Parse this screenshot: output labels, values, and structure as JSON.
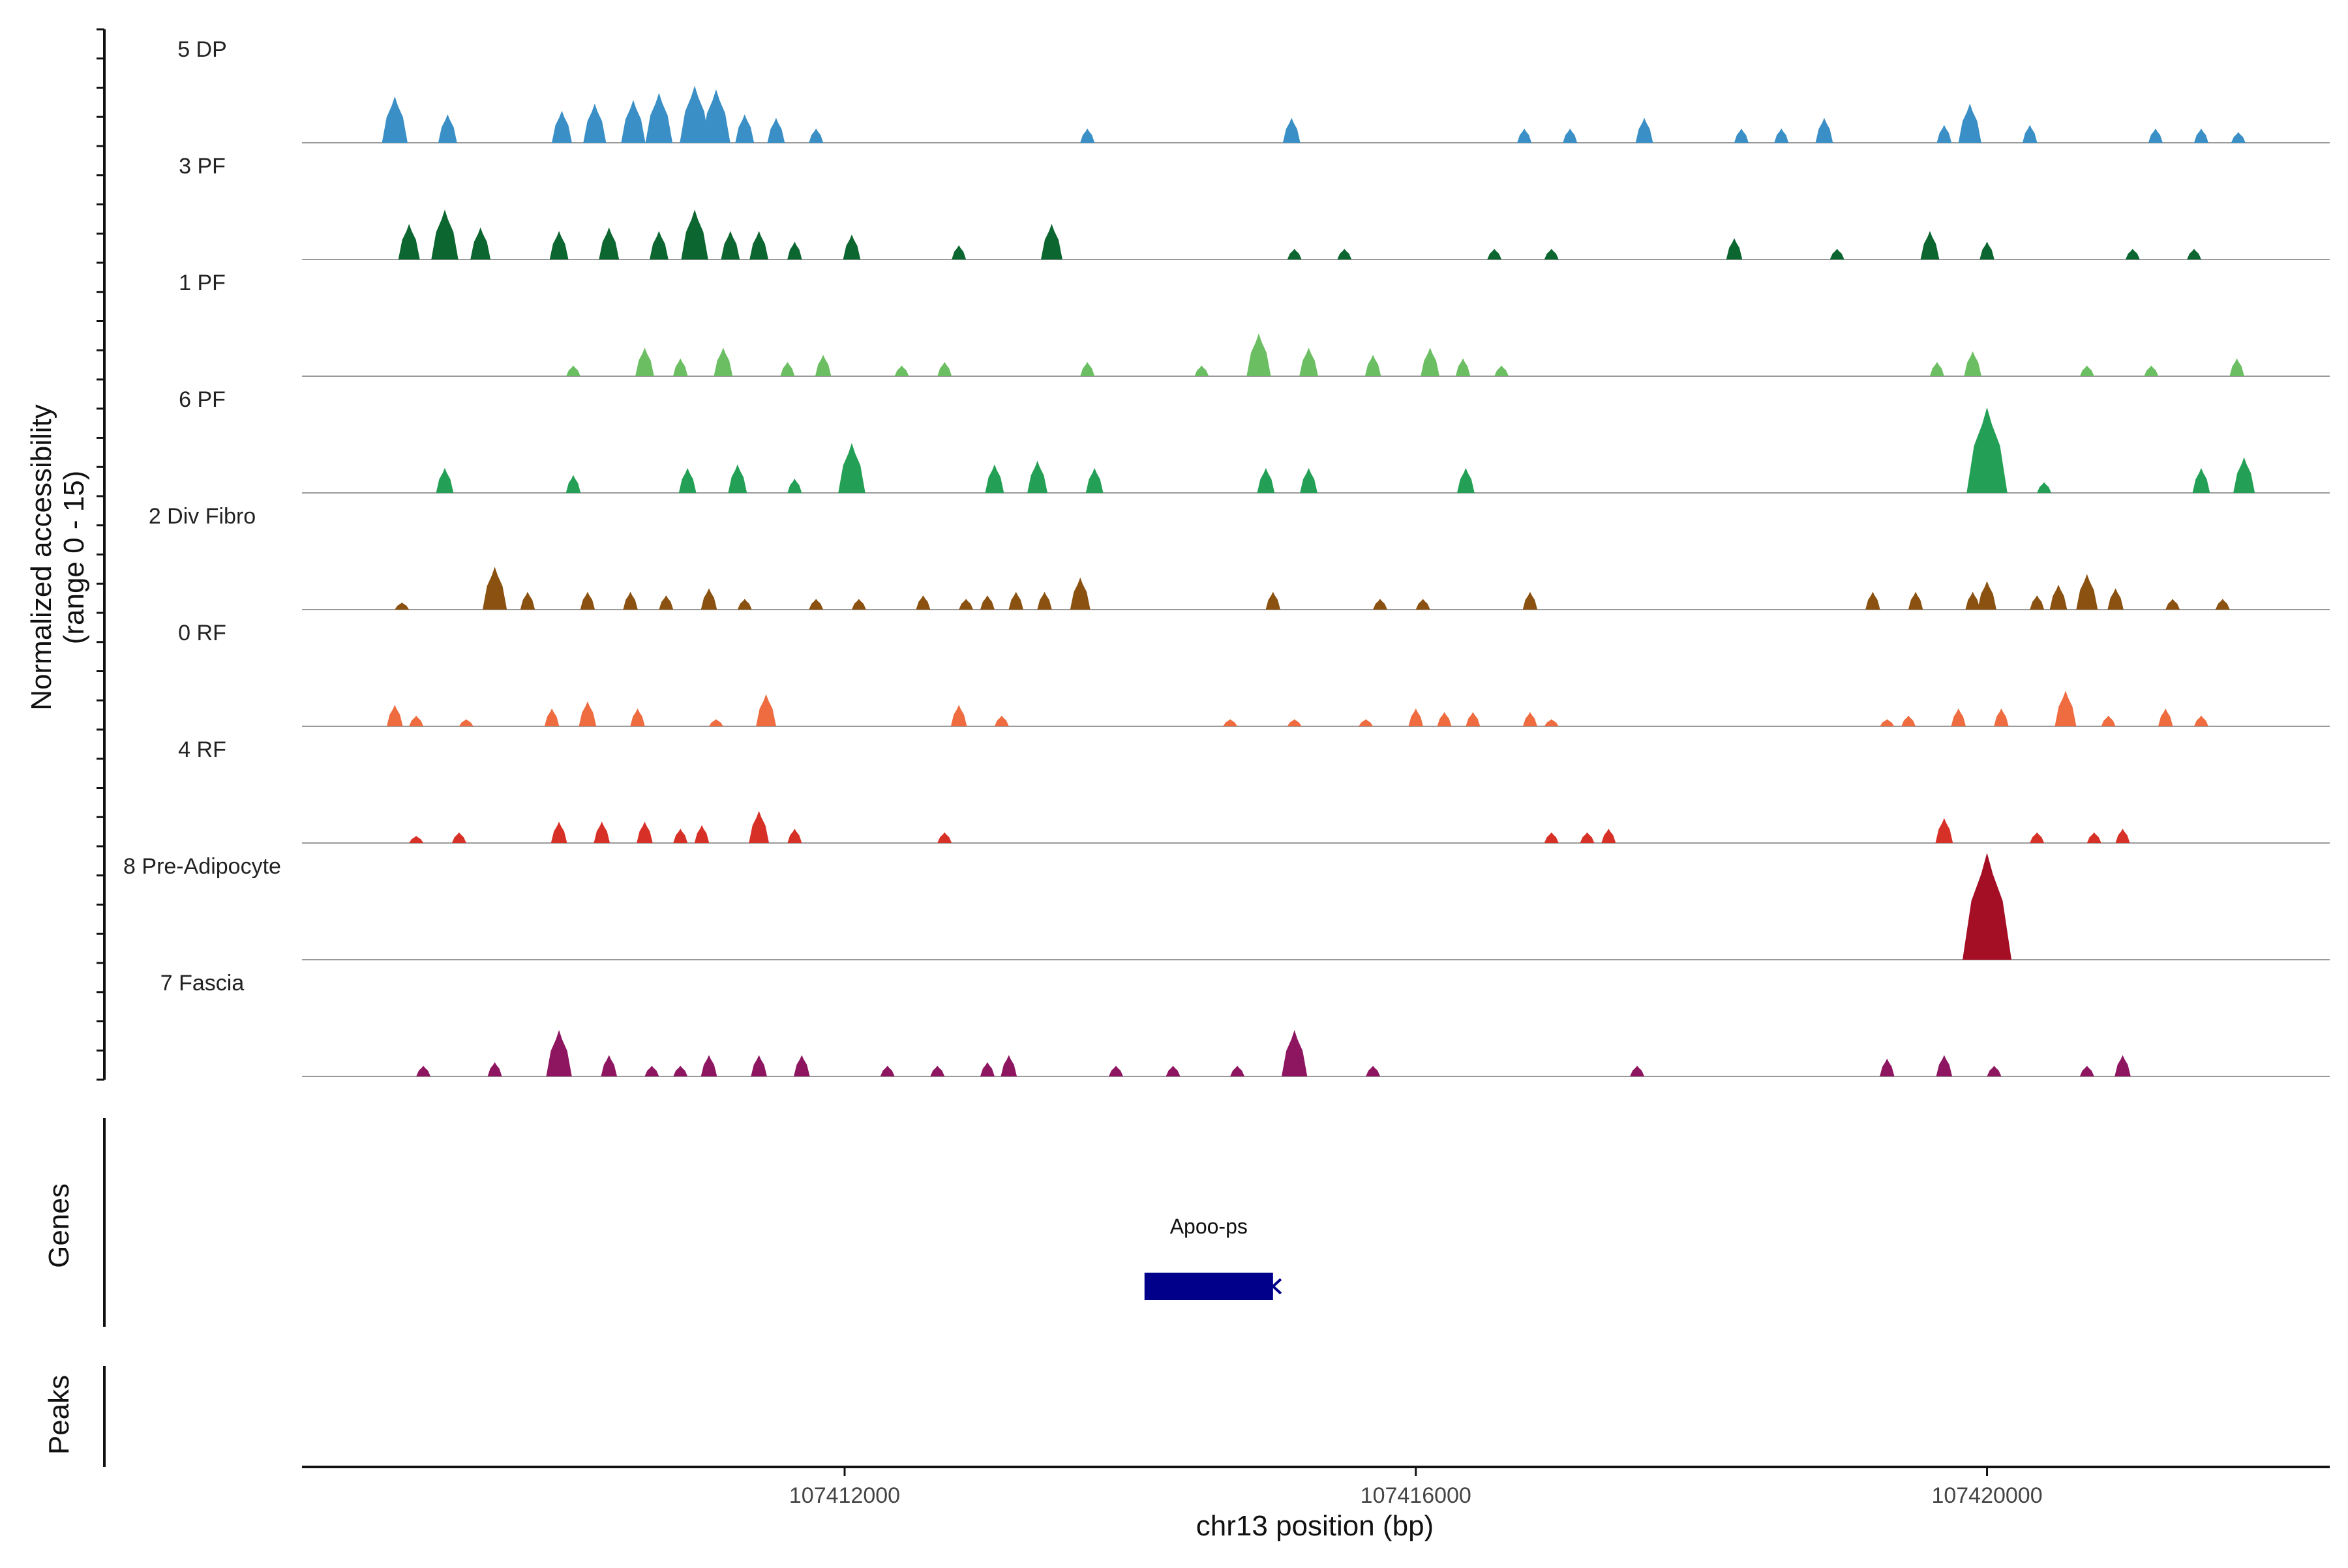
{
  "chart_data": {
    "type": "area",
    "ylabel_line1": "Normalized accessibility",
    "ylabel_line2": "(range 0 - 15)",
    "ylim": [
      0,
      15
    ],
    "xlabel": "chr13 position (bp)",
    "xlim": [
      107408200,
      107422400
    ],
    "xticks": [
      107412000,
      107416000,
      107420000
    ],
    "xtick_labels": [
      "107412000",
      "107416000",
      "107420000"
    ],
    "grid": false,
    "series": [
      {
        "name": "5 DP",
        "color": "#3A8FC6",
        "peaks": [
          [
            107408850,
            6.5
          ],
          [
            107409220,
            4
          ],
          [
            107410020,
            4.5
          ],
          [
            107410250,
            5.5
          ],
          [
            107410520,
            6
          ],
          [
            107410700,
            7
          ],
          [
            107410950,
            8
          ],
          [
            107411100,
            7.5
          ],
          [
            107411300,
            4
          ],
          [
            107411520,
            3.5
          ],
          [
            107411800,
            2
          ],
          [
            107413700,
            2
          ],
          [
            107415130,
            3.5
          ],
          [
            107416760,
            2
          ],
          [
            107417080,
            2
          ],
          [
            107417600,
            3.5
          ],
          [
            107418280,
            2
          ],
          [
            107418560,
            2
          ],
          [
            107418860,
            3.5
          ],
          [
            107419700,
            2.5
          ],
          [
            107419880,
            5.5
          ],
          [
            107420300,
            2.5
          ],
          [
            107421180,
            2
          ],
          [
            107421500,
            2
          ],
          [
            107421760,
            1.5
          ]
        ]
      },
      {
        "name": "3 PF",
        "color": "#0C6630",
        "peaks": [
          [
            107408950,
            5
          ],
          [
            107409200,
            7
          ],
          [
            107409450,
            4.5
          ],
          [
            107410000,
            4
          ],
          [
            107410350,
            4.5
          ],
          [
            107410700,
            4
          ],
          [
            107410950,
            7
          ],
          [
            107411200,
            4
          ],
          [
            107411400,
            4
          ],
          [
            107411650,
            2.5
          ],
          [
            107412050,
            3.5
          ],
          [
            107412800,
            2
          ],
          [
            107413450,
            5
          ],
          [
            107415150,
            1.5
          ],
          [
            107415500,
            1.5
          ],
          [
            107416550,
            1.5
          ],
          [
            107416950,
            1.5
          ],
          [
            107418230,
            3
          ],
          [
            107418950,
            1.5
          ],
          [
            107419600,
            4
          ],
          [
            107420000,
            2.5
          ],
          [
            107421020,
            1.5
          ],
          [
            107421450,
            1.5
          ]
        ]
      },
      {
        "name": "1 PF",
        "color": "#6BBF62",
        "peaks": [
          [
            107410100,
            1.5
          ],
          [
            107410600,
            4
          ],
          [
            107410850,
            2.5
          ],
          [
            107411150,
            4
          ],
          [
            107411600,
            2
          ],
          [
            107411850,
            3
          ],
          [
            107412400,
            1.5
          ],
          [
            107412700,
            2
          ],
          [
            107413700,
            2
          ],
          [
            107414500,
            1.5
          ],
          [
            107414900,
            6
          ],
          [
            107415250,
            4
          ],
          [
            107415700,
            3
          ],
          [
            107416100,
            4
          ],
          [
            107416330,
            2.5
          ],
          [
            107416600,
            1.5
          ],
          [
            107419650,
            2
          ],
          [
            107419900,
            3.5
          ],
          [
            107420700,
            1.5
          ],
          [
            107421150,
            1.5
          ],
          [
            107421750,
            2.5
          ]
        ]
      },
      {
        "name": "6 PF",
        "color": "#23A055",
        "peaks": [
          [
            107409200,
            3.5
          ],
          [
            107410100,
            2.5
          ],
          [
            107410900,
            3.5
          ],
          [
            107411250,
            4
          ],
          [
            107411650,
            2
          ],
          [
            107412050,
            7
          ],
          [
            107413050,
            4
          ],
          [
            107413350,
            4.5
          ],
          [
            107413750,
            3.5
          ],
          [
            107414950,
            3.5
          ],
          [
            107415250,
            3.5
          ],
          [
            107416350,
            3.5
          ],
          [
            107420000,
            12
          ],
          [
            107420400,
            1.5
          ],
          [
            107421500,
            3.5
          ],
          [
            107421800,
            5
          ]
        ]
      },
      {
        "name": "2 Div Fibro",
        "color": "#8A5110",
        "peaks": [
          [
            107408900,
            1
          ],
          [
            107409550,
            6
          ],
          [
            107409780,
            2.5
          ],
          [
            107410200,
            2.5
          ],
          [
            107410500,
            2.5
          ],
          [
            107410750,
            2
          ],
          [
            107411050,
            3
          ],
          [
            107411300,
            1.5
          ],
          [
            107411800,
            1.5
          ],
          [
            107412100,
            1.5
          ],
          [
            107412550,
            2
          ],
          [
            107412850,
            1.5
          ],
          [
            107413000,
            2
          ],
          [
            107413200,
            2.5
          ],
          [
            107413400,
            2.5
          ],
          [
            107413650,
            4.5
          ],
          [
            107415000,
            2.5
          ],
          [
            107415750,
            1.5
          ],
          [
            107416050,
            1.5
          ],
          [
            107416800,
            2.5
          ],
          [
            107419200,
            2.5
          ],
          [
            107419500,
            2.5
          ],
          [
            107419900,
            2.5
          ],
          [
            107420000,
            4
          ],
          [
            107420350,
            2
          ],
          [
            107420500,
            3.5
          ],
          [
            107420700,
            5
          ],
          [
            107420900,
            3
          ],
          [
            107421300,
            1.5
          ],
          [
            107421650,
            1.5
          ]
        ]
      },
      {
        "name": "0 RF",
        "color": "#EE6C40",
        "peaks": [
          [
            107408850,
            3
          ],
          [
            107409000,
            1.5
          ],
          [
            107409350,
            1
          ],
          [
            107409950,
            2.5
          ],
          [
            107410200,
            3.5
          ],
          [
            107410550,
            2.5
          ],
          [
            107411100,
            1
          ],
          [
            107411450,
            4.5
          ],
          [
            107412800,
            3
          ],
          [
            107413100,
            1.5
          ],
          [
            107414700,
            1
          ],
          [
            107415150,
            1
          ],
          [
            107415650,
            1
          ],
          [
            107416000,
            2.5
          ],
          [
            107416200,
            2
          ],
          [
            107416400,
            2
          ],
          [
            107416800,
            2
          ],
          [
            107416950,
            1
          ],
          [
            107419300,
            1
          ],
          [
            107419450,
            1.5
          ],
          [
            107419800,
            2.5
          ],
          [
            107420100,
            2.5
          ],
          [
            107420550,
            5
          ],
          [
            107420850,
            1.5
          ],
          [
            107421250,
            2.5
          ],
          [
            107421500,
            1.5
          ]
        ]
      },
      {
        "name": "4 RF",
        "color": "#D73127",
        "peaks": [
          [
            107409000,
            1
          ],
          [
            107409300,
            1.5
          ],
          [
            107410000,
            3
          ],
          [
            107410300,
            3
          ],
          [
            107410600,
            3
          ],
          [
            107410850,
            2
          ],
          [
            107411000,
            2.5
          ],
          [
            107411400,
            4.5
          ],
          [
            107411650,
            2
          ],
          [
            107412700,
            1.5
          ],
          [
            107416950,
            1.5
          ],
          [
            107417200,
            1.5
          ],
          [
            107417350,
            2
          ],
          [
            107419700,
            3.5
          ],
          [
            107420350,
            1.5
          ],
          [
            107420750,
            1.5
          ],
          [
            107420950,
            2
          ]
        ]
      },
      {
        "name": "8 Pre-Adipocyte",
        "color": "#A50F26",
        "peaks": [
          [
            107420000,
            15
          ]
        ]
      },
      {
        "name": "7 Fascia",
        "color": "#8E1560",
        "peaks": [
          [
            107409050,
            1.5
          ],
          [
            107409550,
            2
          ],
          [
            107410000,
            6.5
          ],
          [
            107410350,
            3
          ],
          [
            107410650,
            1.5
          ],
          [
            107410850,
            1.5
          ],
          [
            107411050,
            3
          ],
          [
            107411400,
            3
          ],
          [
            107411700,
            3
          ],
          [
            107412300,
            1.5
          ],
          [
            107412650,
            1.5
          ],
          [
            107413000,
            2
          ],
          [
            107413150,
            3
          ],
          [
            107413900,
            1.5
          ],
          [
            107414300,
            1.5
          ],
          [
            107414750,
            1.5
          ],
          [
            107415150,
            6.5
          ],
          [
            107415700,
            1.5
          ],
          [
            107417550,
            1.5
          ],
          [
            107419300,
            2.5
          ],
          [
            107419700,
            3
          ],
          [
            107420050,
            1.5
          ],
          [
            107420700,
            1.5
          ],
          [
            107420950,
            3
          ]
        ]
      }
    ],
    "genes_panel_label": "Genes",
    "peaks_panel_label": "Peaks",
    "genes": [
      {
        "name": "Apoo-ps",
        "start": 107414100,
        "end": 107415000,
        "strand": "-",
        "color": "#00008B"
      }
    ]
  }
}
